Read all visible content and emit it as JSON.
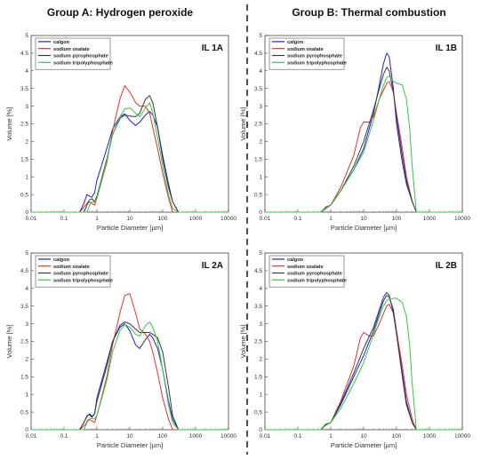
{
  "headers": {
    "left": "Group A: Hydrogen peroxide",
    "right": "Group B: Thermal combustion"
  },
  "chart_data": [
    {
      "type": "line",
      "panel_label": "IL 1A",
      "xlabel": "Particle Diameter [µm]",
      "ylabel": "Volume [%]",
      "xscale": "log",
      "xlim": [
        0.01,
        10000
      ],
      "ylim": [
        0,
        5
      ],
      "x_tick_labels": [
        "0.01",
        "0.1",
        "1",
        "10",
        "100",
        "1000",
        "10000"
      ],
      "y_tick_labels": [
        "0",
        "0.5",
        "1",
        "1.5",
        "2",
        "2.5",
        "3",
        "3.5",
        "4",
        "4.5",
        "5"
      ],
      "legend_position": "top-left",
      "grid": false,
      "series": [
        {
          "name": "calgon",
          "color": "#1f1fd6",
          "x": [
            0.01,
            0.3,
            0.4,
            0.5,
            0.6,
            0.7,
            0.85,
            1,
            2,
            3,
            5,
            7,
            10,
            15,
            20,
            30,
            40,
            50,
            70,
            100,
            150,
            200,
            300,
            10000
          ],
          "y": [
            0,
            0,
            0.25,
            0.5,
            0.45,
            0.42,
            0.55,
            0.9,
            1.8,
            2.35,
            2.7,
            2.78,
            2.6,
            2.45,
            2.55,
            2.75,
            2.85,
            2.75,
            2.4,
            1.6,
            0.8,
            0.3,
            0,
            0
          ]
        },
        {
          "name": "sodium oxalate",
          "color": "#e8312f",
          "x": [
            0.01,
            0.3,
            0.45,
            0.55,
            0.7,
            0.85,
            1,
            2,
            3,
            5,
            7,
            10,
            15,
            20,
            30,
            40,
            50,
            70,
            100,
            150,
            200,
            10000
          ],
          "y": [
            0,
            0,
            0.2,
            0.3,
            0.25,
            0.2,
            0.4,
            1.4,
            2.3,
            3.2,
            3.58,
            3.4,
            3.1,
            3.0,
            3.0,
            2.8,
            2.4,
            1.8,
            1.1,
            0.4,
            0,
            0
          ]
        },
        {
          "name": "sodium pyrophosphate",
          "color": "#3a3a3a",
          "x": [
            0.01,
            0.4,
            0.5,
            0.6,
            0.7,
            0.85,
            1,
            2,
            3,
            5,
            7,
            10,
            15,
            20,
            30,
            40,
            50,
            70,
            100,
            150,
            200,
            300,
            10000
          ],
          "y": [
            0,
            0,
            0.2,
            0.35,
            0.38,
            0.3,
            0.45,
            1.5,
            2.2,
            2.65,
            2.75,
            2.72,
            2.7,
            2.8,
            3.2,
            3.3,
            3.1,
            2.4,
            1.5,
            0.7,
            0.3,
            0,
            0
          ]
        },
        {
          "name": "sodium tripolyphosphate",
          "color": "#2ecc40",
          "x": [
            0.01,
            0.5,
            0.6,
            0.7,
            0.85,
            1,
            2,
            3,
            5,
            7,
            10,
            15,
            20,
            30,
            40,
            50,
            70,
            100,
            150,
            200,
            300,
            10000
          ],
          "y": [
            0,
            0,
            0.2,
            0.3,
            0.28,
            0.4,
            1.45,
            2.2,
            2.7,
            2.92,
            2.95,
            2.8,
            2.7,
            2.95,
            3.1,
            2.8,
            2.1,
            1.3,
            0.5,
            0.1,
            0,
            0
          ]
        }
      ]
    },
    {
      "type": "line",
      "panel_label": "IL 1B",
      "xlabel": "Particle Diameter [µm]",
      "ylabel": "Volume [%]",
      "xscale": "log",
      "xlim": [
        0.01,
        10000
      ],
      "ylim": [
        0,
        5
      ],
      "x_tick_labels": [
        "0.01",
        "0.1",
        "1",
        "10",
        "100",
        "1000",
        "10000"
      ],
      "y_tick_labels": [
        "0",
        "0.5",
        "1",
        "1.5",
        "2",
        "2.5",
        "3",
        "3.5",
        "4",
        "4.5",
        "5"
      ],
      "legend_position": "top-left",
      "grid": false,
      "series": [
        {
          "name": "calgon",
          "color": "#1f1fd6",
          "x": [
            0.01,
            0.5,
            0.7,
            1,
            2,
            5,
            10,
            20,
            30,
            40,
            50,
            60,
            80,
            100,
            150,
            200,
            300,
            400,
            10000
          ],
          "y": [
            0,
            0,
            0.1,
            0.2,
            0.6,
            1.2,
            1.8,
            2.8,
            3.6,
            4.2,
            4.5,
            4.4,
            3.5,
            2.5,
            1.4,
            0.8,
            0.3,
            0,
            0
          ]
        },
        {
          "name": "sodium oxalate",
          "color": "#e8312f",
          "x": [
            0.01,
            0.5,
            0.7,
            1,
            2,
            5,
            8,
            10,
            15,
            20,
            30,
            50,
            60,
            80,
            100,
            150,
            200,
            300,
            400,
            10000
          ],
          "y": [
            0,
            0,
            0.15,
            0.2,
            0.7,
            1.6,
            2.4,
            2.55,
            2.55,
            2.7,
            3.2,
            3.65,
            3.7,
            3.4,
            2.8,
            1.8,
            1.0,
            0.3,
            0,
            0
          ]
        },
        {
          "name": "sodium pyrophosphate",
          "color": "#3a3a3a",
          "x": [
            0.01,
            0.5,
            0.7,
            1,
            2,
            5,
            10,
            20,
            30,
            40,
            50,
            60,
            80,
            100,
            150,
            200,
            300,
            400,
            10000
          ],
          "y": [
            0,
            0,
            0.12,
            0.2,
            0.6,
            1.3,
            2.0,
            2.9,
            3.5,
            3.9,
            4.1,
            4.0,
            3.4,
            2.7,
            1.6,
            0.9,
            0.3,
            0,
            0
          ]
        },
        {
          "name": "sodium tripolyphosphate",
          "color": "#2ecc40",
          "x": [
            0.01,
            0.5,
            0.7,
            1,
            2,
            5,
            10,
            20,
            30,
            40,
            50,
            60,
            80,
            100,
            150,
            200,
            250,
            300,
            400,
            10000
          ],
          "y": [
            0,
            0,
            0.12,
            0.2,
            0.6,
            1.2,
            1.7,
            2.6,
            3.2,
            3.6,
            3.8,
            3.85,
            3.7,
            3.65,
            3.6,
            3.2,
            2.4,
            1.3,
            0,
            0
          ]
        }
      ]
    },
    {
      "type": "line",
      "panel_label": "IL 2A",
      "xlabel": "Particle Diameter [µm]",
      "ylabel": "Volume [%]",
      "xscale": "log",
      "xlim": [
        0.01,
        10000
      ],
      "ylim": [
        0,
        5
      ],
      "x_tick_labels": [
        "0.01",
        "0.1",
        "1",
        "10",
        "100",
        "1000",
        "10000"
      ],
      "y_tick_labels": [
        "0",
        "0.5",
        "1",
        "1.5",
        "2",
        "2.5",
        "3",
        "3.5",
        "4",
        "4.5",
        "5"
      ],
      "legend_position": "top-left",
      "grid": false,
      "series": [
        {
          "name": "calgon",
          "color": "#1f1fd6",
          "x": [
            0.01,
            0.3,
            0.4,
            0.5,
            0.6,
            0.7,
            0.85,
            1,
            2,
            3,
            5,
            7,
            10,
            15,
            20,
            30,
            40,
            50,
            70,
            100,
            150,
            200,
            300,
            10000
          ],
          "y": [
            0,
            0,
            0.2,
            0.4,
            0.42,
            0.35,
            0.45,
            0.9,
            1.9,
            2.5,
            2.9,
            3.0,
            2.8,
            2.4,
            2.3,
            2.55,
            2.7,
            2.6,
            2.3,
            1.7,
            0.8,
            0.3,
            0,
            0
          ]
        },
        {
          "name": "sodium oxalate",
          "color": "#e8312f",
          "x": [
            0.01,
            0.3,
            0.45,
            0.55,
            0.7,
            0.85,
            1,
            2,
            3,
            5,
            7,
            10,
            15,
            20,
            30,
            40,
            50,
            70,
            100,
            150,
            200,
            10000
          ],
          "y": [
            0,
            0,
            0.15,
            0.3,
            0.25,
            0.2,
            0.4,
            1.5,
            2.4,
            3.3,
            3.8,
            3.85,
            3.3,
            2.85,
            2.7,
            2.5,
            2.2,
            1.6,
            0.9,
            0.3,
            0,
            0
          ]
        },
        {
          "name": "sodium pyrophosphate",
          "color": "#3a3a3a",
          "x": [
            0.01,
            0.3,
            0.4,
            0.5,
            0.6,
            0.7,
            0.85,
            1,
            2,
            3,
            5,
            7,
            10,
            15,
            20,
            30,
            40,
            50,
            70,
            100,
            150,
            200,
            300,
            10000
          ],
          "y": [
            0,
            0,
            0.2,
            0.38,
            0.45,
            0.38,
            0.45,
            0.8,
            1.8,
            2.5,
            2.95,
            3.05,
            3.0,
            2.85,
            2.75,
            2.75,
            2.75,
            2.7,
            2.6,
            2.2,
            1.2,
            0.4,
            0,
            0
          ]
        },
        {
          "name": "sodium tripolyphosphate",
          "color": "#2ecc40",
          "x": [
            0.01,
            0.4,
            0.5,
            0.6,
            0.7,
            0.85,
            1,
            2,
            3,
            5,
            7,
            10,
            15,
            20,
            30,
            40,
            50,
            70,
            100,
            150,
            200,
            300,
            10000
          ],
          "y": [
            0,
            0,
            0.2,
            0.3,
            0.32,
            0.3,
            0.4,
            1.4,
            2.2,
            2.8,
            2.98,
            2.9,
            2.7,
            2.65,
            2.95,
            3.05,
            2.9,
            2.5,
            1.7,
            0.7,
            0.2,
            0,
            0
          ]
        }
      ]
    },
    {
      "type": "line",
      "panel_label": "IL 2B",
      "xlabel": "Particle Diameter [µm]",
      "ylabel": "Volume [%]",
      "xscale": "log",
      "xlim": [
        0.01,
        10000
      ],
      "ylim": [
        0,
        5
      ],
      "x_tick_labels": [
        "0.01",
        "0.1",
        "1",
        "10",
        "100",
        "1000",
        "10000"
      ],
      "y_tick_labels": [
        "0",
        "0.5",
        "1",
        "1.5",
        "2",
        "2.5",
        "3",
        "3.5",
        "4",
        "4.5",
        "5"
      ],
      "legend_position": "top-left",
      "grid": false,
      "series": [
        {
          "name": "calgon",
          "color": "#1f1fd6",
          "x": [
            0.01,
            0.5,
            0.7,
            1,
            2,
            5,
            10,
            20,
            30,
            40,
            50,
            60,
            80,
            100,
            150,
            200,
            300,
            400,
            10000
          ],
          "y": [
            0,
            0,
            0.15,
            0.2,
            0.7,
            1.5,
            2.1,
            2.8,
            3.3,
            3.65,
            3.8,
            3.75,
            3.4,
            2.8,
            1.6,
            0.8,
            0.2,
            0,
            0
          ]
        },
        {
          "name": "sodium oxalate",
          "color": "#e8312f",
          "x": [
            0.01,
            0.5,
            0.7,
            1,
            2,
            5,
            8,
            10,
            15,
            20,
            30,
            50,
            60,
            80,
            100,
            150,
            200,
            300,
            400,
            10000
          ],
          "y": [
            0,
            0,
            0.15,
            0.2,
            0.8,
            1.8,
            2.6,
            2.75,
            2.65,
            2.65,
            3.0,
            3.5,
            3.55,
            3.3,
            2.8,
            1.8,
            1.0,
            0.3,
            0,
            0
          ]
        },
        {
          "name": "sodium pyrophosphate",
          "color": "#3a3a3a",
          "x": [
            0.01,
            0.5,
            0.7,
            1,
            2,
            5,
            10,
            20,
            30,
            40,
            50,
            60,
            80,
            100,
            150,
            200,
            300,
            400,
            10000
          ],
          "y": [
            0,
            0,
            0.15,
            0.2,
            0.75,
            1.6,
            2.3,
            2.9,
            3.4,
            3.75,
            3.88,
            3.8,
            3.3,
            2.7,
            1.5,
            0.7,
            0.2,
            0,
            0
          ]
        },
        {
          "name": "sodium tripolyphosphate",
          "color": "#2ecc40",
          "x": [
            0.01,
            0.5,
            0.7,
            1,
            2,
            5,
            10,
            20,
            30,
            40,
            50,
            60,
            80,
            100,
            150,
            200,
            250,
            300,
            400,
            10000
          ],
          "y": [
            0,
            0,
            0.12,
            0.2,
            0.6,
            1.3,
            1.9,
            2.7,
            3.2,
            3.5,
            3.65,
            3.7,
            3.72,
            3.72,
            3.6,
            3.2,
            2.4,
            1.3,
            0,
            0
          ]
        }
      ]
    }
  ]
}
